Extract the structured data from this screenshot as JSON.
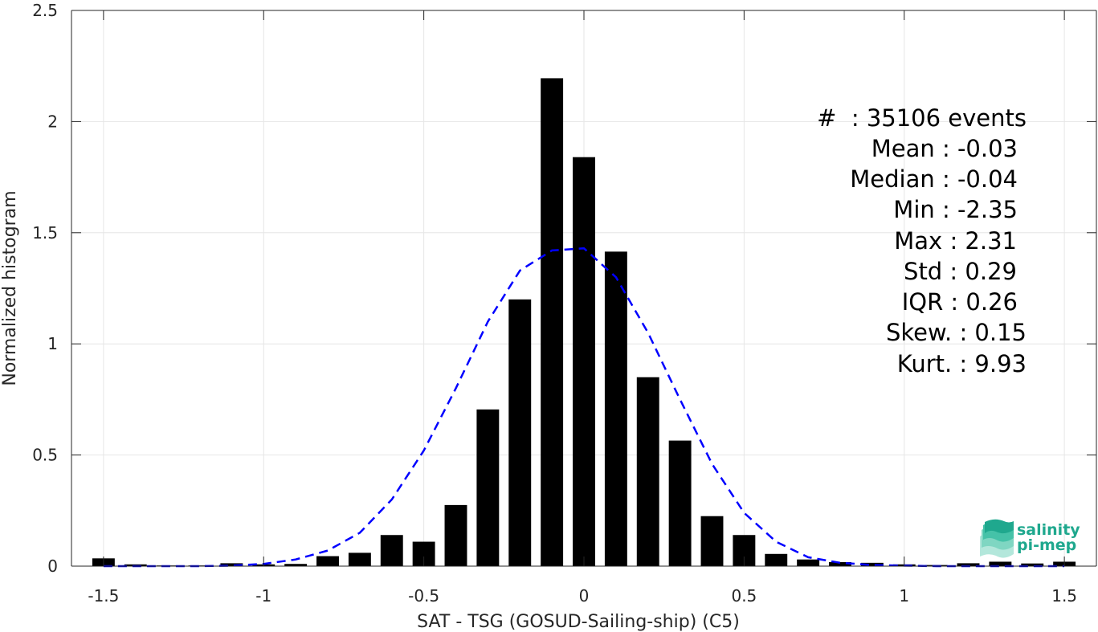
{
  "chart_data": {
    "type": "bar",
    "xlabel": "SAT - TSG (GOSUD-Sailing-ship) (C5)",
    "ylabel": "Normalized histogram",
    "xlim": [
      -1.6,
      1.6
    ],
    "ylim": [
      0,
      2.5
    ],
    "xticks": [
      -1.5,
      -1,
      -0.5,
      0,
      0.5,
      1,
      1.5
    ],
    "xtick_labels": [
      "-1.5",
      "-1",
      "-0.5",
      "0",
      "0.5",
      "1",
      "1.5"
    ],
    "yticks": [
      0,
      0.5,
      1,
      1.5,
      2,
      2.5
    ],
    "ytick_labels": [
      "0",
      "0.5",
      "1",
      "1.5",
      "2",
      "2.5"
    ],
    "grid": true,
    "bar_color": "#000000",
    "fit_color": "#0000ff",
    "bars": {
      "x": [
        -1.5,
        -1.4,
        -1.3,
        -1.2,
        -1.1,
        -1.0,
        -0.9,
        -0.8,
        -0.7,
        -0.6,
        -0.5,
        -0.4,
        -0.3,
        -0.2,
        -0.1,
        0.0,
        0.1,
        0.2,
        0.3,
        0.4,
        0.5,
        0.6,
        0.7,
        0.8,
        0.9,
        1.0,
        1.1,
        1.2,
        1.3,
        1.4,
        1.5
      ],
      "values": [
        0.035,
        0.008,
        0.003,
        0.003,
        0.013,
        0.008,
        0.01,
        0.045,
        0.06,
        0.14,
        0.11,
        0.275,
        0.705,
        1.2,
        2.195,
        1.84,
        1.415,
        0.85,
        0.565,
        0.225,
        0.14,
        0.055,
        0.03,
        0.018,
        0.015,
        0.008,
        0.005,
        0.013,
        0.02,
        0.012,
        0.02
      ]
    },
    "fit_curve": {
      "name": "Gaussian fit",
      "style": "dashed",
      "x": [
        -1.5,
        -1.4,
        -1.3,
        -1.2,
        -1.1,
        -1.0,
        -0.9,
        -0.8,
        -0.7,
        -0.6,
        -0.5,
        -0.4,
        -0.3,
        -0.2,
        -0.1,
        0.0,
        0.1,
        0.2,
        0.3,
        0.4,
        0.5,
        0.6,
        0.7,
        0.8,
        0.9,
        1.0,
        1.1,
        1.2,
        1.3,
        1.4,
        1.5
      ],
      "values": [
        0.0,
        0.0,
        0.0,
        0.0,
        0.002,
        0.01,
        0.03,
        0.07,
        0.15,
        0.3,
        0.52,
        0.8,
        1.1,
        1.33,
        1.42,
        1.43,
        1.3,
        1.05,
        0.75,
        0.46,
        0.24,
        0.11,
        0.04,
        0.015,
        0.005,
        0.002,
        0.0,
        0.0,
        0.0,
        0.0,
        0.0
      ]
    },
    "annotations": [
      "#  : 35106 events",
      "Mean : -0.03",
      "Median : -0.04",
      "Min : -2.35",
      "Max : 2.31",
      "Std : 0.29",
      "IQR : 0.26",
      "Skew. : 0.15",
      "Kurt. : 9.93"
    ]
  },
  "logo": {
    "line1": "salinity",
    "line2": "pi-mep",
    "colors": [
      "#1fa88e",
      "#45c2a8",
      "#7fd6c2",
      "#b3e7db"
    ]
  }
}
